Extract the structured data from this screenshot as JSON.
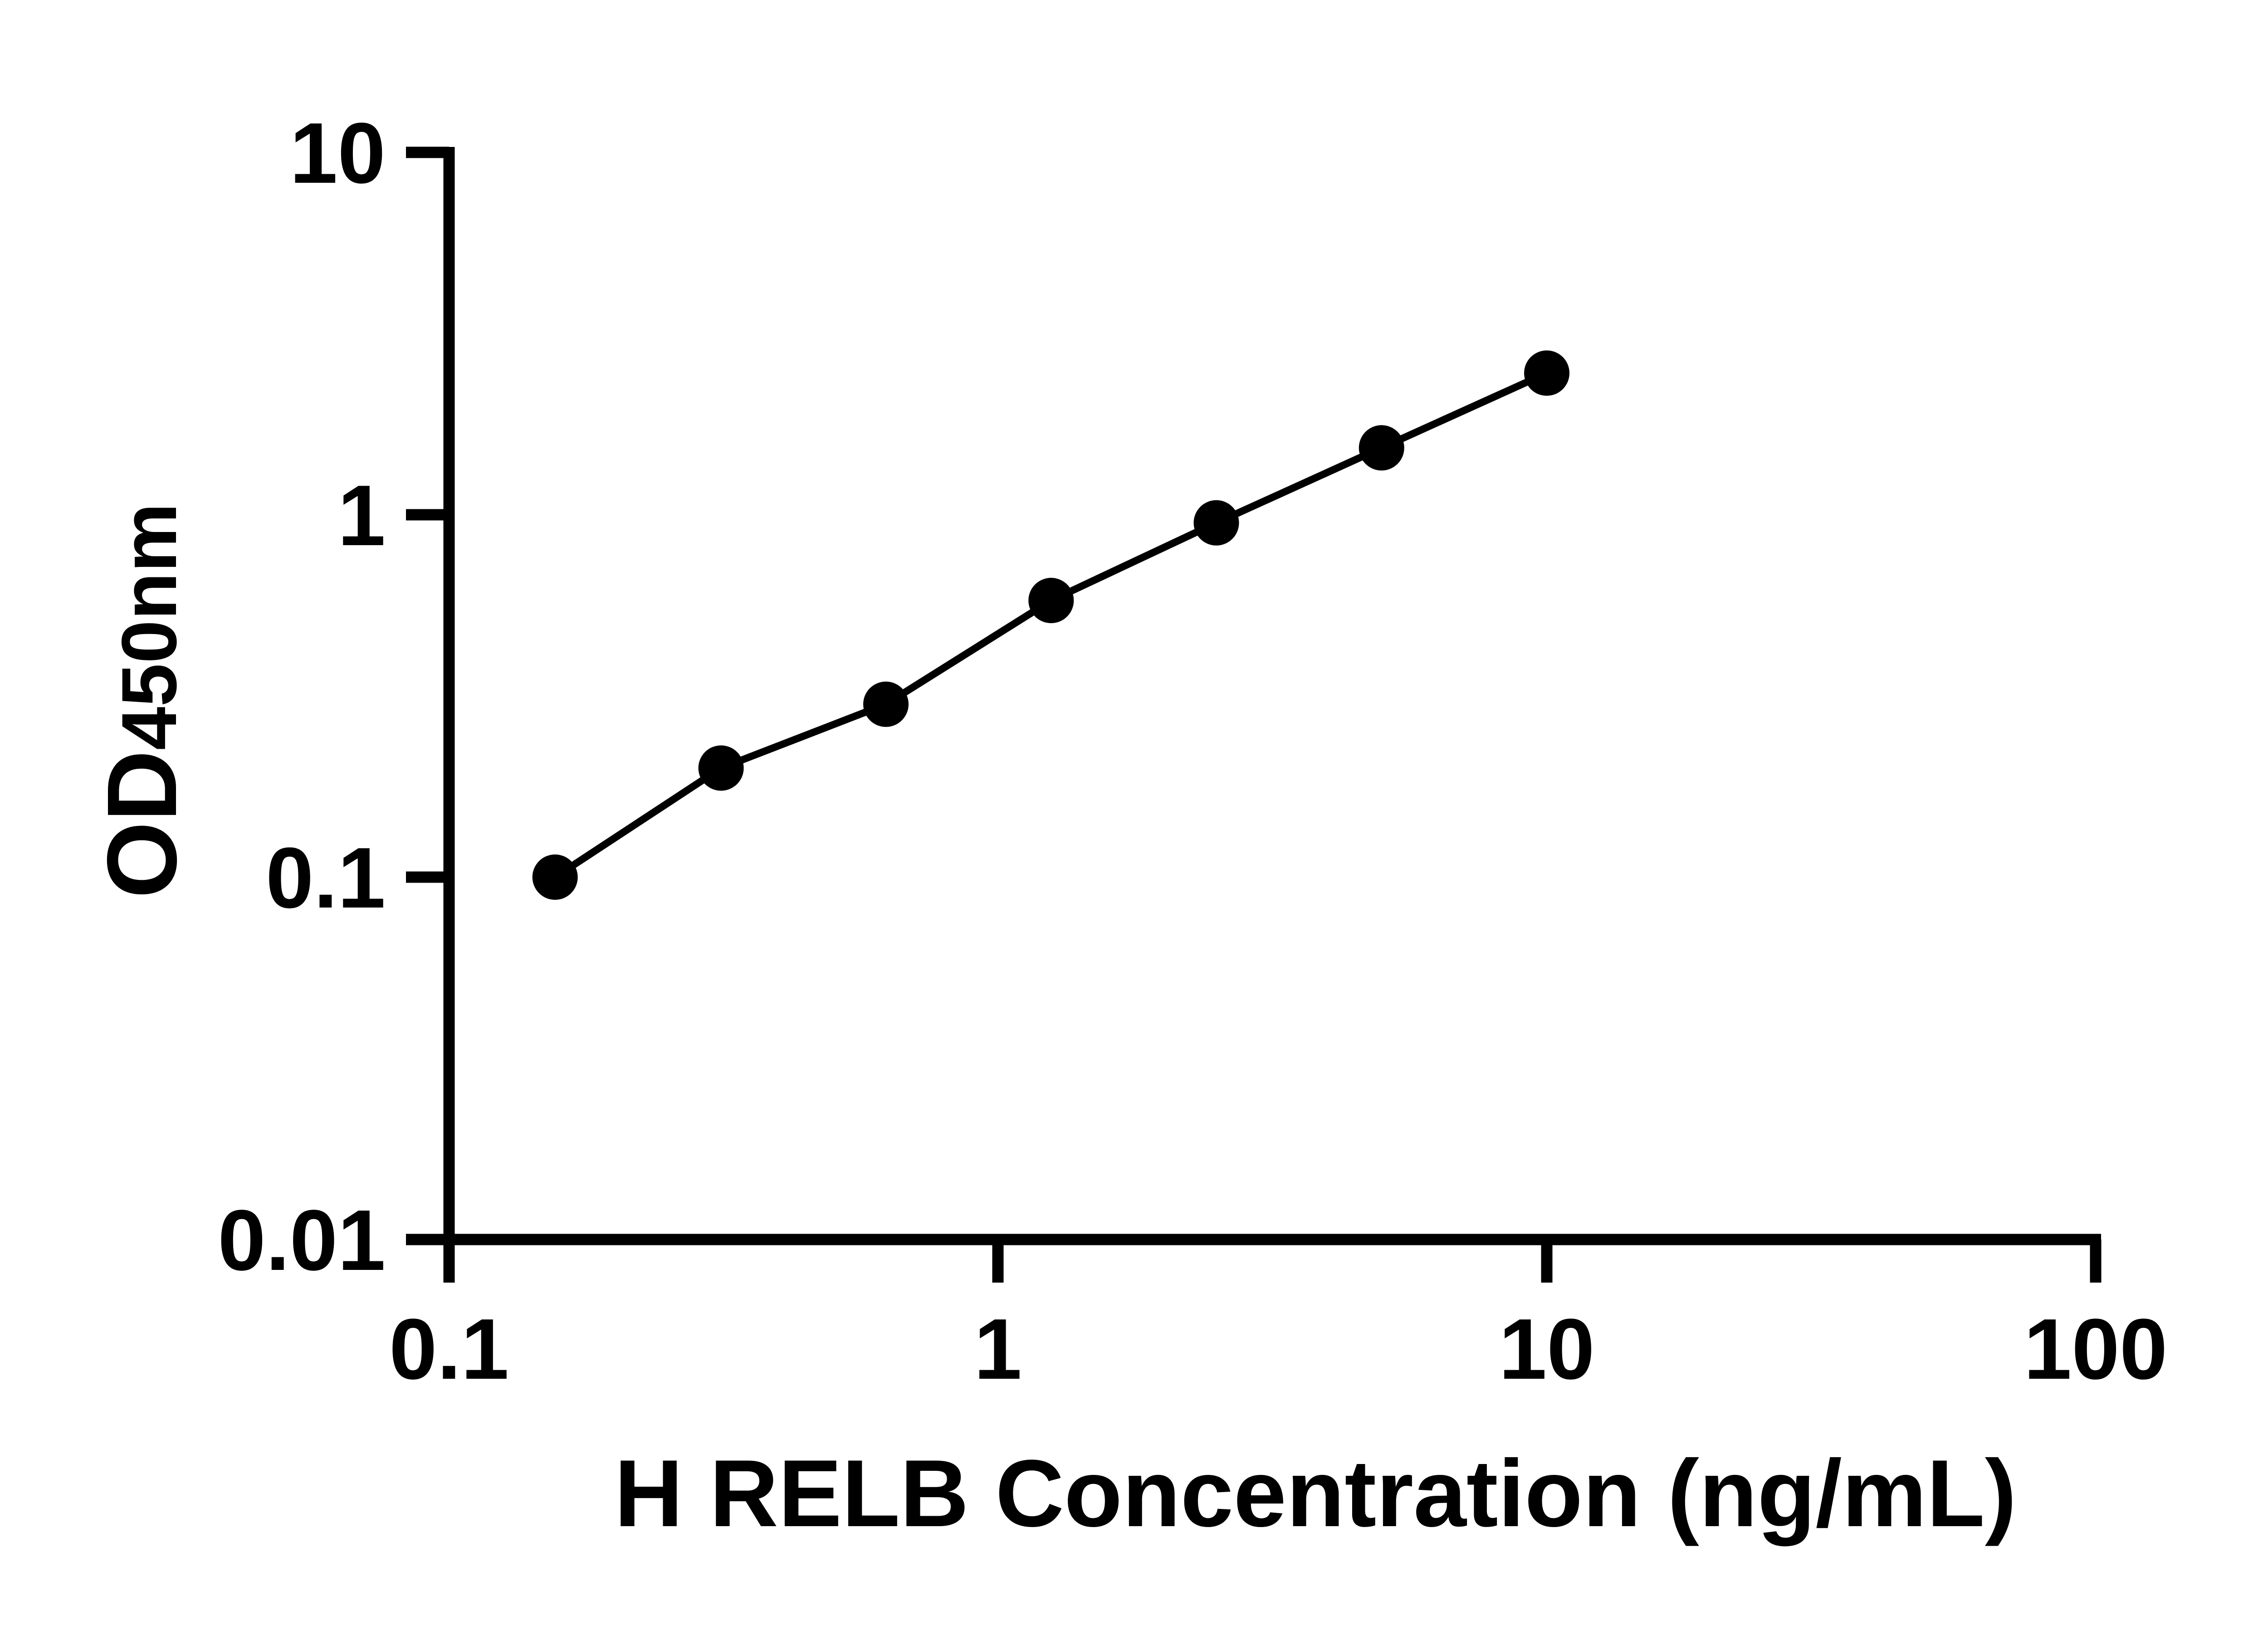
{
  "colors": {
    "foreground": "#000000",
    "background": "#ffffff"
  },
  "chart_data": {
    "type": "line",
    "title": "",
    "xlabel": "H RELB Concentration (ng/mL)",
    "ylabel": "OD",
    "ylabel_subscript": "450nm",
    "x_scale": "log10",
    "y_scale": "log10",
    "xlim": [
      0.1,
      100
    ],
    "ylim": [
      0.01,
      10
    ],
    "grid": false,
    "legend": "none",
    "x_ticks": [
      {
        "value": 0.1,
        "label": "0.1"
      },
      {
        "value": 1,
        "label": "1"
      },
      {
        "value": 10,
        "label": "10"
      },
      {
        "value": 100,
        "label": "100"
      }
    ],
    "y_ticks": [
      {
        "value": 10,
        "label": "10"
      },
      {
        "value": 1,
        "label": "1"
      },
      {
        "value": 0.1,
        "label": "0.1"
      },
      {
        "value": 0.01,
        "label": "0.01"
      }
    ],
    "series": [
      {
        "marker": "filled-circle",
        "color": "#000000",
        "points": [
          {
            "x": 0.156,
            "y": 0.1
          },
          {
            "x": 0.313,
            "y": 0.2
          },
          {
            "x": 0.625,
            "y": 0.3
          },
          {
            "x": 1.25,
            "y": 0.58
          },
          {
            "x": 2.5,
            "y": 0.95
          },
          {
            "x": 5,
            "y": 1.53
          },
          {
            "x": 10,
            "y": 2.46
          }
        ]
      }
    ]
  }
}
